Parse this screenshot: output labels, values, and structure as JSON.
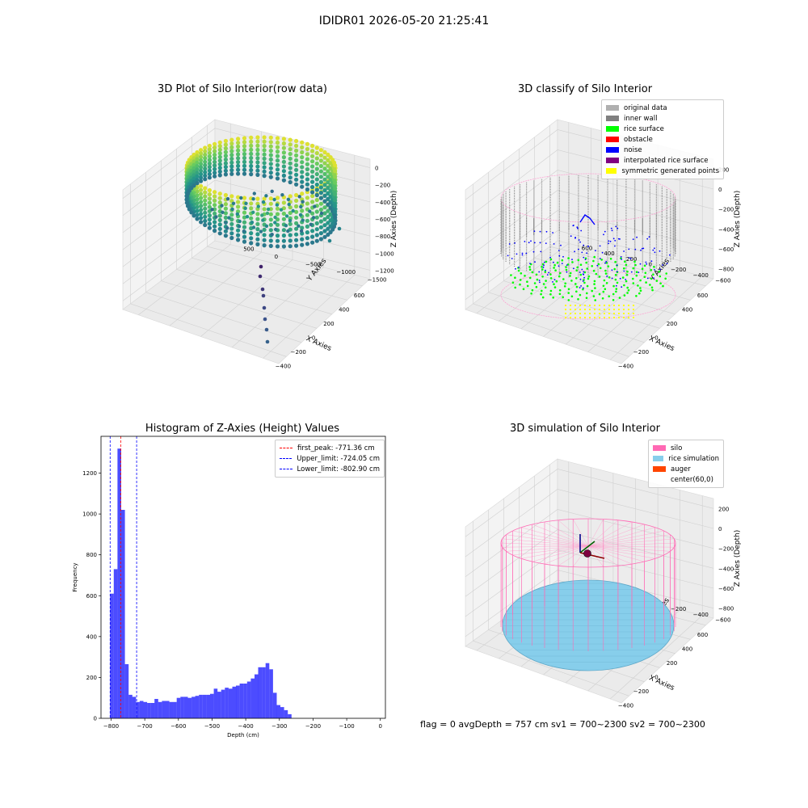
{
  "figure_title": "IDIDR01 2026-05-20 21:25:41",
  "status_line": "flag = 0     avgDepth = 757 cm  sv1 = 700~2300  sv2 = 700~2300",
  "chart_data": [
    {
      "type": "scatter",
      "title": "3D Plot of Silo Interior(row data)",
      "xlabel": "X Axies",
      "ylabel": "Y Axies",
      "zlabel": "Z Axies (Depth)",
      "x_ticks": [
        "−400",
        "−200",
        "0",
        "200",
        "400",
        "600"
      ],
      "y_ticks": [
        "−1500",
        "−1000",
        "−500",
        "0",
        "500"
      ],
      "z_ticks": [
        "0",
        "−200",
        "−400",
        "−600",
        "−800",
        "−1000",
        "−1200"
      ],
      "colormap": "viridis"
    },
    {
      "type": "scatter",
      "title": "3D classify of Silo Interior",
      "xlabel": "X Axies",
      "ylabel": "Y Axies",
      "zlabel": "Z Axies (Depth)",
      "x_ticks": [
        "−400",
        "−200",
        "0",
        "200",
        "400",
        "600"
      ],
      "y_ticks": [
        "−600",
        "−400",
        "−200",
        "0",
        "200",
        "400",
        "600"
      ],
      "z_ticks": [
        "200",
        "0",
        "−200",
        "−400",
        "−600",
        "−800"
      ],
      "legend_position": "top-right",
      "legend": [
        {
          "label": "original data",
          "color": "#b0b0b0"
        },
        {
          "label": "inner wall",
          "color": "#808080"
        },
        {
          "label": "rice surface",
          "color": "#00ff00"
        },
        {
          "label": "obstacle",
          "color": "#ff0000"
        },
        {
          "label": "noise",
          "color": "#0000ff"
        },
        {
          "label": "interpolated rice surface",
          "color": "#800080"
        },
        {
          "label": "symmetric generated points",
          "color": "#ffff00"
        }
      ]
    },
    {
      "type": "bar",
      "title": "Histogram of Z-Axies (Height) Values",
      "xlabel": "Depth (cm)",
      "ylabel": "Frequency",
      "xlim": [
        -830,
        15
      ],
      "ylim": [
        0,
        1380
      ],
      "x_ticks": [
        -800,
        -700,
        -600,
        -500,
        -400,
        -300,
        -200,
        -100,
        0
      ],
      "y_ticks": [
        0,
        200,
        400,
        600,
        800,
        1000,
        1200
      ],
      "bin_start": -803,
      "bin_width": 11,
      "values": [
        610,
        730,
        1320,
        1020,
        265,
        115,
        105,
        80,
        85,
        80,
        75,
        75,
        95,
        80,
        85,
        85,
        80,
        80,
        100,
        105,
        105,
        100,
        105,
        110,
        115,
        115,
        115,
        120,
        145,
        130,
        140,
        150,
        145,
        155,
        160,
        170,
        170,
        180,
        195,
        215,
        250,
        250,
        270,
        240,
        125,
        65,
        55,
        40,
        20
      ],
      "bar_color": "#0000ff",
      "vlines": [
        {
          "label": "first_peak: -771.36 cm",
          "value": -771.36,
          "color": "#ff0000"
        },
        {
          "label": "Upper_limit: -724.05 cm",
          "value": -724.05,
          "color": "#0000ff"
        },
        {
          "label": "Lower_limit: -802.90 cm",
          "value": -802.9,
          "color": "#0000ff"
        }
      ],
      "legend_position": "top-right"
    },
    {
      "type": "scatter",
      "title": "3D simulation of Silo Interior",
      "xlabel": "X Axies",
      "ylabel": "Y Axies",
      "zlabel": "Z Axies (Depth)",
      "x_ticks": [
        "−400",
        "−200",
        "0",
        "200",
        "400",
        "600"
      ],
      "y_ticks": [
        "−600",
        "−400",
        "−200",
        "0",
        "200",
        "400",
        "600"
      ],
      "z_ticks": [
        "200",
        "0",
        "−200",
        "−400",
        "−600",
        "−800"
      ],
      "legend_position": "top-right",
      "legend": [
        {
          "label": "silo",
          "color": "#ff69b4"
        },
        {
          "label": "rice simulation",
          "color": "#87ceeb"
        },
        {
          "label": "auger",
          "color": "#ff4500"
        },
        {
          "label": "center(60,0)",
          "color": "#ffffff"
        }
      ]
    }
  ]
}
